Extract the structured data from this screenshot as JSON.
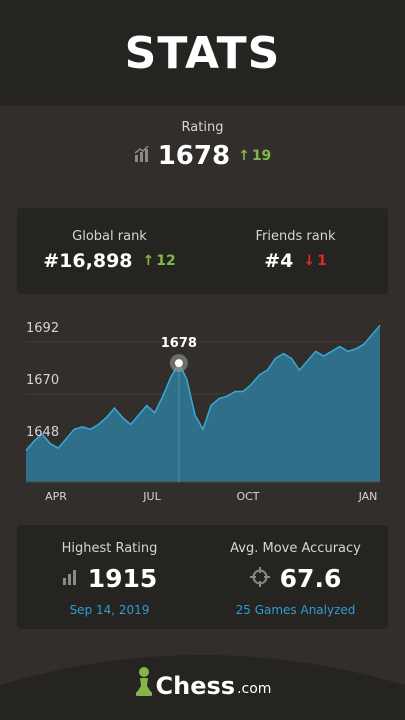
{
  "header": {
    "title": "STATS"
  },
  "rating": {
    "label": "Rating",
    "value": "1678",
    "change": "19"
  },
  "ranks": {
    "global": {
      "label": "Global rank",
      "value": "#16,898",
      "change": "12"
    },
    "friends": {
      "label": "Friends rank",
      "value": "#4",
      "change": "1"
    }
  },
  "chart": {
    "highlight_label": "1678",
    "yticks": [
      "1692",
      "1670",
      "1648"
    ],
    "xticks": [
      "APR",
      "JUL",
      "OCT",
      "JAN"
    ]
  },
  "chart_data": {
    "type": "area",
    "yticks": [
      1692,
      1670,
      1648
    ],
    "xlabels": [
      "APR",
      "JUL",
      "OCT",
      "JAN"
    ],
    "series": [
      {
        "values": [
          1641,
          1645,
          1648,
          1644,
          1642,
          1646,
          1650,
          1651,
          1650,
          1652,
          1655,
          1659,
          1655,
          1652,
          1656,
          1660,
          1657,
          1664,
          1672,
          1678,
          1671,
          1656,
          1650,
          1660,
          1663,
          1664,
          1666,
          1666,
          1669,
          1673,
          1675,
          1680,
          1682,
          1680,
          1675,
          1679,
          1683,
          1681,
          1683,
          1685,
          1683,
          1684,
          1686,
          1690,
          1694
        ]
      }
    ],
    "highlight": {
      "index": 19,
      "value": 1678
    },
    "colors": {
      "fill": "#2f6f8a",
      "line": "#3aa9d6"
    },
    "grid": true
  },
  "stats": {
    "highest": {
      "label": "Highest Rating",
      "value": "1915",
      "sub": "Sep 14, 2019"
    },
    "accuracy": {
      "label": "Avg. Move Accuracy",
      "value": "67.6",
      "sub": "25 Games Analyzed"
    }
  },
  "logo": {
    "text": "Chess",
    "suffix": ".com"
  }
}
